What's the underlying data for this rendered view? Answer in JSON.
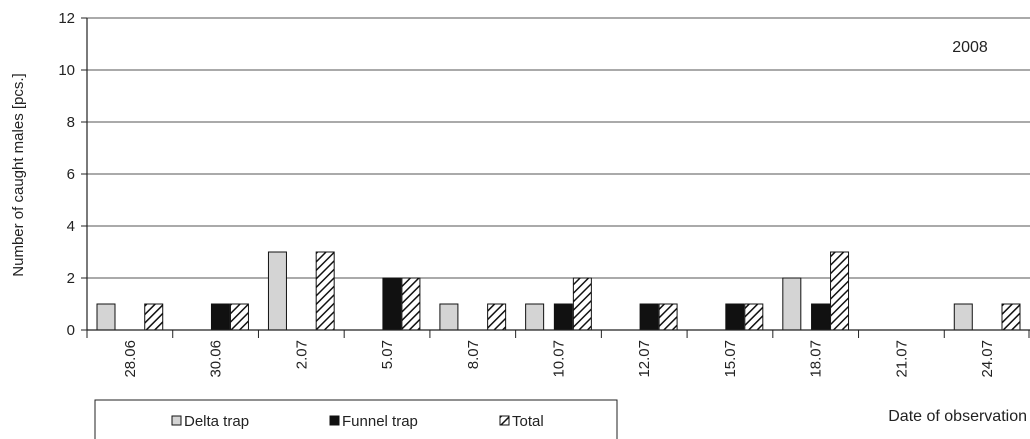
{
  "chart_data": {
    "type": "bar",
    "annotation": "2008",
    "ylabel": "Number of caught males [pcs.]",
    "xlabel": "Date of observation",
    "ylim": [
      0,
      12
    ],
    "yticks": [
      0,
      2,
      4,
      6,
      8,
      10,
      12
    ],
    "grid": true,
    "legend_position": "bottom-left",
    "categories": [
      "28.06",
      "30.06",
      "2.07",
      "5.07",
      "8.07",
      "10.07",
      "12.07",
      "15.07",
      "18.07",
      "21.07",
      "24.07"
    ],
    "series": [
      {
        "name": "Delta trap",
        "pattern": "light-gray",
        "color": "#d4d4d4",
        "values": [
          1,
          0,
          3,
          0,
          1,
          1,
          0,
          0,
          2,
          0,
          1
        ]
      },
      {
        "name": "Funnel trap",
        "pattern": "black",
        "color": "#111111",
        "values": [
          0,
          1,
          0,
          2,
          0,
          1,
          1,
          1,
          1,
          0,
          0
        ]
      },
      {
        "name": "Total",
        "pattern": "diagonal-hatch",
        "color": "#ffffff",
        "values": [
          1,
          1,
          3,
          2,
          1,
          2,
          1,
          1,
          3,
          0,
          1
        ]
      }
    ]
  }
}
